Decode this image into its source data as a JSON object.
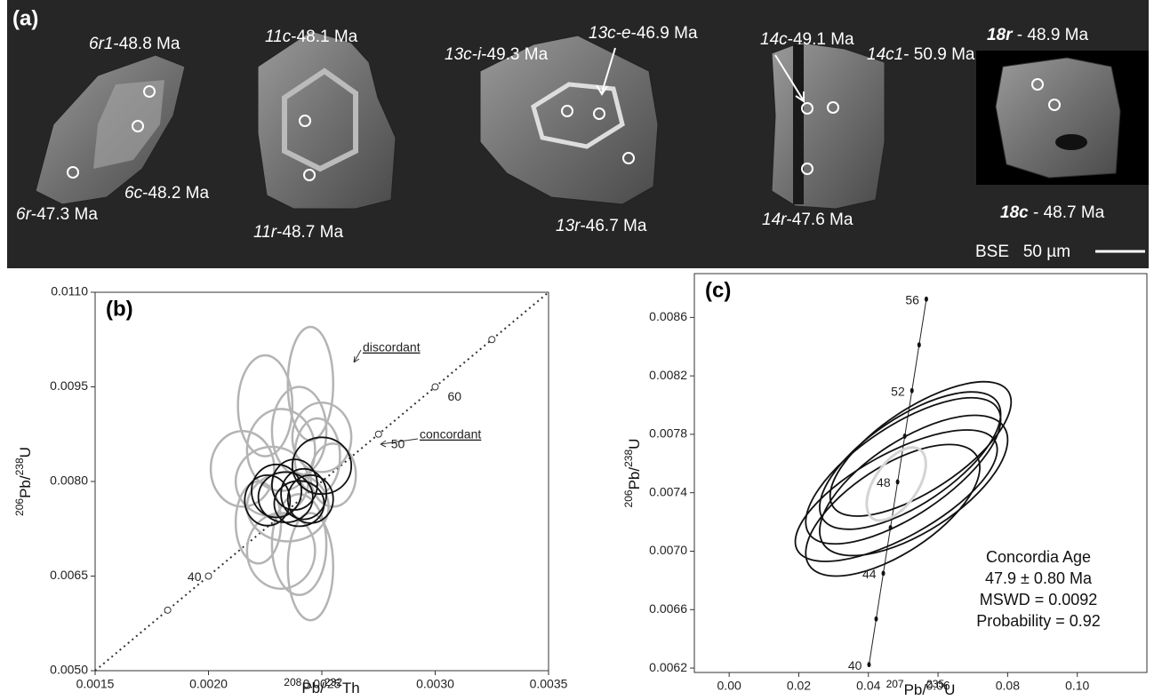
{
  "panel_a": {
    "label": "(a)",
    "scale": "BSE   50 µm",
    "grains": [
      {
        "spot": "6r1",
        "age": "-48.8 Ma"
      },
      {
        "spot": "6r",
        "age": "-47.3 Ma"
      },
      {
        "spot": "6c",
        "age": "-48.2 Ma"
      },
      {
        "spot": "11c",
        "age": "-48.1 Ma"
      },
      {
        "spot": "11r",
        "age": "-48.7 Ma"
      },
      {
        "spot": "13c-i",
        "age": "-49.3 Ma"
      },
      {
        "spot": "13c-e",
        "age": "-46.9 Ma"
      },
      {
        "spot": "13r",
        "age": "-46.7 Ma"
      },
      {
        "spot": "14c",
        "age": "-49.1 Ma"
      },
      {
        "spot": "14c1",
        "age": "- 50.9 Ma"
      },
      {
        "spot": "14r",
        "age": "-47.6 Ma"
      },
      {
        "spot": "18r",
        "age": " - 48.9 Ma",
        "bold": true
      },
      {
        "spot": "18c",
        "age": " - 48.7 Ma",
        "bold": true
      }
    ]
  },
  "chart_data": [
    {
      "type": "concordia",
      "panel_label": "(b)",
      "x_label": [
        {
          "text": "208",
          "sup": true
        },
        {
          "text": "Pb/"
        },
        {
          "text": "232",
          "sup": true
        },
        {
          "text": "Th"
        }
      ],
      "y_label": [
        {
          "text": "206",
          "sup": true
        },
        {
          "text": "Pb/"
        },
        {
          "text": "238",
          "sup": true
        },
        {
          "text": "U"
        }
      ],
      "xlim": [
        0.0015,
        0.0035
      ],
      "ylim": [
        0.005,
        0.011
      ],
      "xticks": [
        0.0015,
        {
          "value": 0.002,
          "label": "0.0020"
        },
        0.0025,
        {
          "value": 0.003,
          "label": "0.0030"
        },
        0.0035
      ],
      "yticks": [
        {
          "value": 0.005,
          "label": "0.0050"
        },
        0.0065,
        {
          "value": 0.008,
          "label": "0.0080"
        },
        0.0095,
        {
          "value": 0.011,
          "label": "0.0110"
        }
      ],
      "line": {
        "x": [
          0.0015,
          0.0035
        ],
        "values": [
          0.005,
          0.011
        ]
      },
      "concordia": {
        "x": [
          0.00182,
          0.002,
          0.00275,
          0.003,
          0.00325
        ],
        "values": [
          0.00596,
          0.0065,
          0.00875,
          0.0095,
          0.01025
        ],
        "labels": [
          null,
          "40",
          "50",
          "60",
          null
        ]
      },
      "series": [
        {
          "color": "#b4b4b4",
          "x": [
            0.00245,
            0.00225,
            0.0024,
            0.00232,
            0.00215,
            0.00248,
            0.00228,
            0.00235,
            0.00222,
            0.0024,
            0.00245,
            0.00232,
            0.00255,
            0.0025
          ],
          "values": [
            0.00955,
            0.0092,
            0.0088,
            0.0085,
            0.0082,
            0.0084,
            0.008,
            0.0076,
            0.00735,
            0.007,
            0.00665,
            0.0069,
            0.0081,
            0.0087
          ],
          "x_err": [
            0.0001,
            0.00012,
            0.00012,
            0.00015,
            0.00014,
            0.0001,
            0.00016,
            0.00018,
            0.0001,
            0.00012,
            0.0001,
            0.00015,
            0.0001,
            0.00013
          ],
          "y_err": [
            0.0009,
            0.0008,
            0.0007,
            0.00065,
            0.0006,
            0.0006,
            0.00055,
            0.00055,
            0.00065,
            0.0008,
            0.00085,
            0.0006,
            0.0005,
            0.00055
          ]
        },
        {
          "color": "#111111",
          "x": [
            0.0025,
            0.00238,
            0.0023,
            0.00242,
            0.00234,
            0.00245,
            0.00226,
            0.0024
          ],
          "values": [
            0.00825,
            0.00795,
            0.00785,
            0.0078,
            0.00775,
            0.00772,
            0.0077,
            0.00765
          ],
          "x_err": [
            0.00013,
            0.0001,
            0.00011,
            0.0001,
            0.00012,
            0.0001,
            0.0001,
            0.00011
          ],
          "y_err": [
            0.00045,
            0.0004,
            0.00042,
            0.0004,
            0.0004,
            0.00038,
            0.0004,
            0.00036
          ]
        }
      ],
      "annotations": [
        "discordant",
        "concordant"
      ]
    },
    {
      "type": "concordia",
      "panel_label": "(c)",
      "x_label": [
        {
          "text": "207",
          "sup": true
        },
        {
          "text": "Pb/"
        },
        {
          "text": "235",
          "sup": true
        },
        {
          "text": "U"
        }
      ],
      "y_label": [
        {
          "text": "206",
          "sup": true
        },
        {
          "text": "Pb/"
        },
        {
          "text": "238",
          "sup": true
        },
        {
          "text": "U"
        }
      ],
      "xlim": [
        -0.01,
        0.12
      ],
      "ylim": [
        0.00617,
        0.0089
      ],
      "xticks": [
        {
          "value": 0,
          "label": "0.00"
        },
        0.02,
        0.04,
        0.06,
        0.08,
        {
          "value": 0.1,
          "label": "0.10"
        }
      ],
      "yticks": [
        0.0062,
        0.0066,
        {
          "value": 0.007,
          "label": "0.0070"
        },
        0.0074,
        0.0078,
        0.0082,
        0.0086
      ],
      "concordia": {
        "x": [
          0.04018,
          0.04223,
          0.04428,
          0.04634,
          0.04839,
          0.05045,
          0.05251,
          0.05457,
          0.05664
        ],
        "values": [
          0.006224,
          0.006536,
          0.006849,
          0.007161,
          0.007474,
          0.007787,
          0.008099,
          0.008412,
          0.008725
        ],
        "labels": [
          "40",
          null,
          "44",
          null,
          "48",
          null,
          "52",
          null,
          "56"
        ]
      },
      "series": [
        {
          "color": "#111111",
          "x": [
            0.05,
            0.053,
            0.048,
            0.052,
            0.047,
            0.055
          ],
          "values": [
            0.00755,
            0.00745,
            0.00738,
            0.00762,
            0.00728,
            0.0077
          ],
          "x_err": [
            0.028,
            0.027,
            0.029,
            0.026,
            0.025,
            0.026
          ],
          "y_err": [
            0.0005,
            0.00048,
            0.00045,
            0.00047,
            0.00045,
            0.00046
          ],
          "rho": [
            0.7,
            0.65,
            0.7,
            0.68,
            0.65,
            0.7
          ]
        },
        {
          "color": "#d4d4d4",
          "x": [
            0.048
          ],
          "values": [
            0.00746
          ],
          "x_err": [
            0.0085
          ],
          "y_err": [
            0.00025
          ],
          "rho": [
            0.55
          ]
        }
      ],
      "annotations": [
        "Concordia Age",
        "47.9 ± 0.80 Ma",
        "MSWD = 0.0092",
        "Probability = 0.92"
      ]
    }
  ]
}
